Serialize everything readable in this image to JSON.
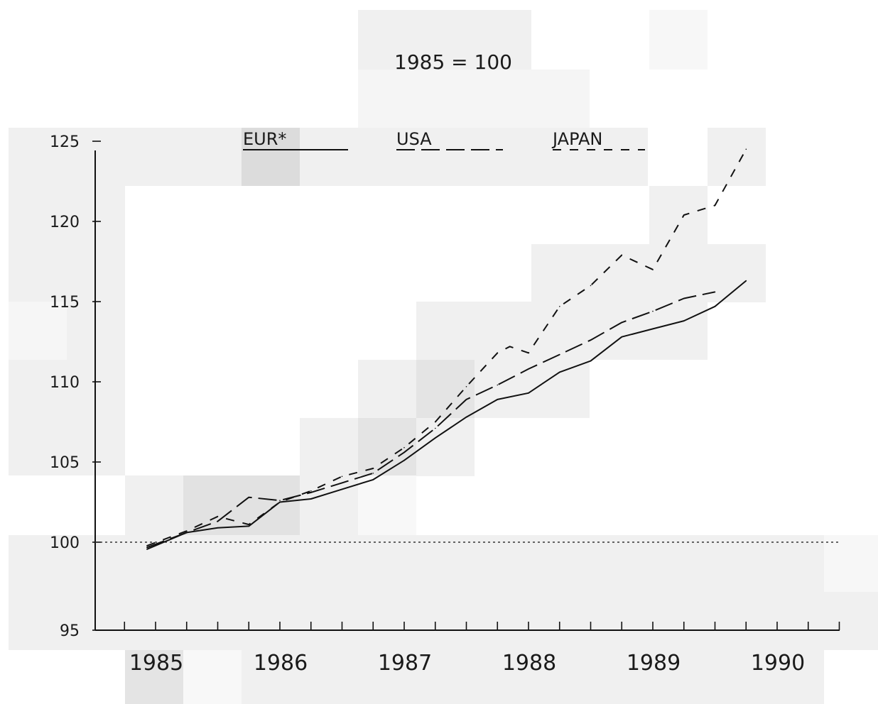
{
  "chart_data": {
    "type": "line",
    "subtitle": "1985 = 100",
    "baseline": 100,
    "ylim": [
      95,
      125
    ],
    "xlim": [
      1985,
      1990.8
    ],
    "y_ticks": [
      95,
      100,
      105,
      110,
      115,
      120,
      125
    ],
    "y_tick_labels": [
      "95",
      "100",
      "105",
      "110",
      "115",
      "120",
      "125"
    ],
    "x_ticks": [
      1985,
      1986,
      1987,
      1988,
      1989,
      1990
    ],
    "x_tick_labels": [
      "1985",
      "1986",
      "1987",
      "1988",
      "1989",
      "1990"
    ],
    "grid": false,
    "legend_position": "top",
    "series": [
      {
        "name": "EUR*",
        "style": "solid",
        "points": [
          [
            1984.93,
            99.6
          ],
          [
            1985.25,
            100.6
          ],
          [
            1985.5,
            100.9
          ],
          [
            1985.75,
            101.0
          ],
          [
            1986.0,
            102.5
          ],
          [
            1986.25,
            102.7
          ],
          [
            1986.5,
            103.3
          ],
          [
            1986.75,
            103.9
          ],
          [
            1987.0,
            105.1
          ],
          [
            1987.25,
            106.5
          ],
          [
            1987.5,
            107.8
          ],
          [
            1987.75,
            108.9
          ],
          [
            1988.0,
            109.3
          ],
          [
            1988.25,
            110.6
          ],
          [
            1988.5,
            111.3
          ],
          [
            1988.75,
            112.8
          ],
          [
            1989.0,
            113.3
          ],
          [
            1989.25,
            113.8
          ],
          [
            1989.5,
            114.7
          ],
          [
            1989.75,
            116.3
          ]
        ]
      },
      {
        "name": "USA",
        "style": "long-dash",
        "points": [
          [
            1984.93,
            99.7
          ],
          [
            1985.25,
            100.6
          ],
          [
            1985.5,
            101.3
          ],
          [
            1985.75,
            102.8
          ],
          [
            1986.0,
            102.6
          ],
          [
            1986.25,
            103.1
          ],
          [
            1986.5,
            103.7
          ],
          [
            1986.75,
            104.3
          ],
          [
            1987.0,
            105.6
          ],
          [
            1987.25,
            107.1
          ],
          [
            1987.5,
            108.9
          ],
          [
            1987.75,
            109.8
          ],
          [
            1988.0,
            110.8
          ],
          [
            1988.25,
            111.7
          ],
          [
            1988.5,
            112.6
          ],
          [
            1988.75,
            113.7
          ],
          [
            1989.0,
            114.4
          ],
          [
            1989.25,
            115.2
          ],
          [
            1989.5,
            115.6
          ]
        ]
      },
      {
        "name": "JAPAN",
        "style": "short-dash",
        "points": [
          [
            1984.93,
            99.8
          ],
          [
            1985.25,
            100.7
          ],
          [
            1985.5,
            101.6
          ],
          [
            1985.75,
            101.1
          ],
          [
            1986.0,
            102.5
          ],
          [
            1986.25,
            103.2
          ],
          [
            1986.5,
            104.1
          ],
          [
            1986.75,
            104.6
          ],
          [
            1987.0,
            105.9
          ],
          [
            1987.25,
            107.5
          ],
          [
            1987.5,
            109.7
          ],
          [
            1987.75,
            111.8
          ],
          [
            1987.85,
            112.2
          ],
          [
            1988.0,
            111.8
          ],
          [
            1988.25,
            114.7
          ],
          [
            1988.5,
            116.0
          ],
          [
            1988.75,
            117.9
          ],
          [
            1989.0,
            117.0
          ],
          [
            1989.25,
            120.4
          ],
          [
            1989.5,
            121.0
          ],
          [
            1989.75,
            124.5
          ]
        ]
      }
    ]
  }
}
